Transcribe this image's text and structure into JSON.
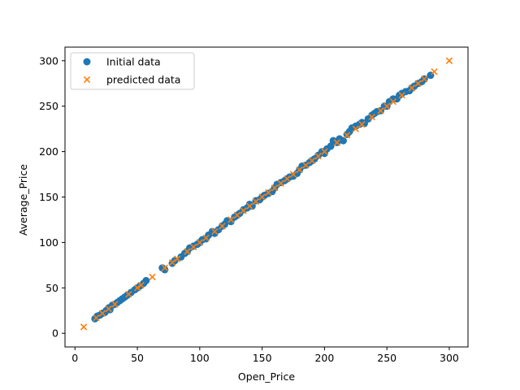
{
  "chart_data": {
    "type": "scatter",
    "xlabel": "Open_Price",
    "ylabel": "Average_Price",
    "xlim": [
      -8,
      315
    ],
    "ylim": [
      -15,
      315
    ],
    "xticks": [
      0,
      50,
      100,
      150,
      200,
      250,
      300
    ],
    "yticks": [
      0,
      50,
      100,
      150,
      200,
      250,
      300
    ],
    "grid": false,
    "legend_position": "top-left",
    "series": [
      {
        "name": "Initial data",
        "marker": "circle",
        "color": "#1f77b4",
        "x": [
          16,
          18,
          20,
          22,
          24,
          25,
          27,
          28,
          30,
          32,
          34,
          36,
          38,
          40,
          42,
          45,
          48,
          50,
          52,
          55,
          57,
          70,
          72,
          78,
          80,
          85,
          88,
          90,
          92,
          95,
          98,
          100,
          102,
          105,
          107,
          110,
          112,
          115,
          118,
          120,
          122,
          125,
          128,
          130,
          132,
          135,
          138,
          140,
          142,
          145,
          148,
          150,
          152,
          155,
          158,
          160,
          162,
          165,
          168,
          170,
          172,
          175,
          178,
          180,
          182,
          185,
          188,
          190,
          192,
          195,
          198,
          200,
          202,
          205,
          207,
          210,
          212,
          215,
          218,
          220,
          222,
          225,
          228,
          230,
          232,
          235,
          238,
          240,
          242,
          245,
          248,
          250,
          252,
          255,
          258,
          260,
          262,
          265,
          268,
          270,
          272,
          275,
          278,
          280,
          285
        ],
        "y": [
          16,
          19,
          20,
          22,
          23,
          25,
          28,
          26,
          31,
          32,
          34,
          36,
          38,
          40,
          42,
          45,
          48,
          50,
          52,
          55,
          58,
          72,
          70,
          77,
          80,
          84,
          88,
          90,
          94,
          96,
          98,
          100,
          103,
          104,
          108,
          112,
          110,
          114,
          118,
          120,
          124,
          123,
          128,
          130,
          132,
          136,
          138,
          142,
          140,
          146,
          147,
          150,
          152,
          154,
          156,
          160,
          164,
          166,
          168,
          170,
          172,
          173,
          176,
          180,
          184,
          185,
          188,
          190,
          192,
          196,
          200,
          198,
          203,
          206,
          212,
          210,
          214,
          212,
          219,
          222,
          226,
          228,
          230,
          232,
          231,
          236,
          240,
          242,
          244,
          245,
          250,
          250,
          255,
          258,
          258,
          262,
          264,
          266,
          267,
          270,
          272,
          275,
          277,
          280,
          284
        ]
      },
      {
        "name": "predicted data",
        "marker": "x",
        "color": "#ff7f0e",
        "x": [
          7,
          17,
          22,
          27,
          32,
          43,
          50,
          53,
          62,
          72,
          78,
          82,
          90,
          95,
          100,
          105,
          112,
          118,
          125,
          130,
          135,
          140,
          145,
          150,
          155,
          160,
          165,
          170,
          175,
          180,
          185,
          190,
          195,
          200,
          210,
          218,
          225,
          230,
          238,
          245,
          250,
          255,
          262,
          270,
          275,
          280,
          288,
          300
        ],
        "y": [
          7,
          17,
          22,
          27,
          32,
          43,
          50,
          53,
          62,
          72,
          78,
          82,
          90,
          95,
          100,
          105,
          112,
          118,
          125,
          130,
          135,
          140,
          145,
          150,
          155,
          160,
          165,
          170,
          175,
          180,
          185,
          190,
          195,
          200,
          210,
          218,
          225,
          230,
          238,
          245,
          250,
          255,
          262,
          270,
          275,
          280,
          288,
          300
        ]
      }
    ]
  }
}
